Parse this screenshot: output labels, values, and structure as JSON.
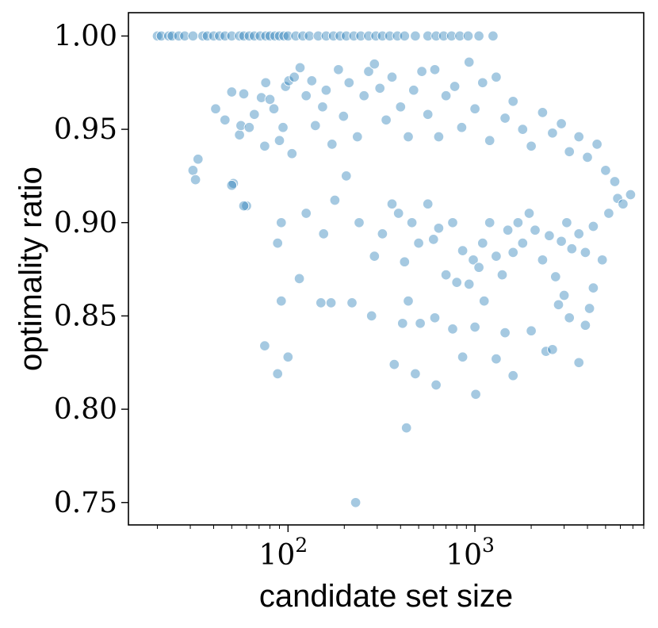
{
  "chart_data": {
    "type": "scatter",
    "xlabel": "candidate set size",
    "ylabel": "optimality ratio",
    "xscale": "log",
    "xlim": [
      14,
      8000
    ],
    "ylim": [
      0.738,
      1.0125
    ],
    "grid": false,
    "legend": "none",
    "color": "#1f77b4",
    "x_ticks": [
      {
        "value": 100,
        "base": "10",
        "exp": "2"
      },
      {
        "value": 1000,
        "base": "10",
        "exp": "3"
      }
    ],
    "y_ticks": [
      {
        "value": 1.0,
        "label": "1.00"
      },
      {
        "value": 0.95,
        "label": "0.95"
      },
      {
        "value": 0.9,
        "label": "0.90"
      },
      {
        "value": 0.85,
        "label": "0.85"
      },
      {
        "value": 0.8,
        "label": "0.80"
      },
      {
        "value": 0.75,
        "label": "0.75"
      }
    ],
    "points": [
      [
        20,
        1.0
      ],
      [
        21,
        1.0
      ],
      [
        23,
        1.0
      ],
      [
        24,
        1.0
      ],
      [
        26,
        1.0
      ],
      [
        28,
        1.0
      ],
      [
        31,
        1.0
      ],
      [
        35,
        1.0
      ],
      [
        37,
        1.0
      ],
      [
        40,
        1.0
      ],
      [
        43,
        1.0
      ],
      [
        46,
        1.0
      ],
      [
        50,
        1.0
      ],
      [
        55,
        1.0
      ],
      [
        58,
        1.0
      ],
      [
        62,
        1.0
      ],
      [
        66,
        1.0
      ],
      [
        71,
        1.0
      ],
      [
        76,
        1.0
      ],
      [
        80,
        1.0
      ],
      [
        85,
        1.0
      ],
      [
        90,
        1.0
      ],
      [
        95,
        1.0
      ],
      [
        100,
        1.0
      ],
      [
        110,
        1.0
      ],
      [
        120,
        1.0
      ],
      [
        130,
        1.0
      ],
      [
        145,
        1.0
      ],
      [
        160,
        1.0
      ],
      [
        175,
        1.0
      ],
      [
        190,
        1.0
      ],
      [
        205,
        1.0
      ],
      [
        225,
        1.0
      ],
      [
        245,
        1.0
      ],
      [
        270,
        1.0
      ],
      [
        295,
        1.0
      ],
      [
        320,
        1.0
      ],
      [
        350,
        1.0
      ],
      [
        385,
        1.0
      ],
      [
        420,
        1.0
      ],
      [
        480,
        1.0
      ],
      [
        560,
        1.0
      ],
      [
        620,
        1.0
      ],
      [
        680,
        1.0
      ],
      [
        750,
        1.0
      ],
      [
        830,
        1.0
      ],
      [
        920,
        1.0
      ],
      [
        1050,
        1.0
      ],
      [
        1250,
        1.0
      ],
      [
        41,
        0.961
      ],
      [
        46,
        0.955
      ],
      [
        50,
        0.97
      ],
      [
        51,
        0.921
      ],
      [
        55,
        0.947
      ],
      [
        56,
        0.952
      ],
      [
        58,
        0.969
      ],
      [
        60,
        0.909
      ],
      [
        62,
        0.951
      ],
      [
        66,
        0.958
      ],
      [
        72,
        0.967
      ],
      [
        75,
        0.941
      ],
      [
        76,
        0.975
      ],
      [
        80,
        0.966
      ],
      [
        84,
        0.961
      ],
      [
        90,
        0.944
      ],
      [
        94,
        0.951
      ],
      [
        97,
        0.973
      ],
      [
        101,
        0.976
      ],
      [
        105,
        0.937
      ],
      [
        108,
        0.978
      ],
      [
        116,
        0.983
      ],
      [
        125,
        0.968
      ],
      [
        134,
        0.976
      ],
      [
        140,
        0.952
      ],
      [
        153,
        0.962
      ],
      [
        160,
        0.971
      ],
      [
        172,
        0.942
      ],
      [
        186,
        0.982
      ],
      [
        198,
        0.957
      ],
      [
        212,
        0.975
      ],
      [
        235,
        0.946
      ],
      [
        255,
        0.968
      ],
      [
        270,
        0.981
      ],
      [
        290,
        0.985
      ],
      [
        310,
        0.972
      ],
      [
        335,
        0.955
      ],
      [
        360,
        0.978
      ],
      [
        400,
        0.962
      ],
      [
        440,
        0.946
      ],
      [
        470,
        0.971
      ],
      [
        520,
        0.981
      ],
      [
        560,
        0.958
      ],
      [
        610,
        0.982
      ],
      [
        640,
        0.946
      ],
      [
        700,
        0.968
      ],
      [
        780,
        0.973
      ],
      [
        850,
        0.951
      ],
      [
        930,
        0.986
      ],
      [
        1000,
        0.961
      ],
      [
        1100,
        0.975
      ],
      [
        1200,
        0.944
      ],
      [
        1300,
        0.978
      ],
      [
        1450,
        0.956
      ],
      [
        1600,
        0.965
      ],
      [
        1800,
        0.95
      ],
      [
        2000,
        0.941
      ],
      [
        2300,
        0.959
      ],
      [
        2600,
        0.948
      ],
      [
        2900,
        0.953
      ],
      [
        3200,
        0.938
      ],
      [
        3600,
        0.946
      ],
      [
        4000,
        0.935
      ],
      [
        4500,
        0.942
      ],
      [
        5000,
        0.928
      ],
      [
        5600,
        0.922
      ],
      [
        31,
        0.928
      ],
      [
        32,
        0.923
      ],
      [
        33,
        0.934
      ],
      [
        50,
        0.92
      ],
      [
        58,
        0.909
      ],
      [
        88,
        0.889
      ],
      [
        92,
        0.9
      ],
      [
        125,
        0.905
      ],
      [
        155,
        0.894
      ],
      [
        178,
        0.912
      ],
      [
        205,
        0.925
      ],
      [
        240,
        0.9
      ],
      [
        290,
        0.882
      ],
      [
        320,
        0.894
      ],
      [
        360,
        0.91
      ],
      [
        390,
        0.905
      ],
      [
        420,
        0.879
      ],
      [
        460,
        0.9
      ],
      [
        500,
        0.889
      ],
      [
        560,
        0.91
      ],
      [
        600,
        0.891
      ],
      [
        640,
        0.897
      ],
      [
        700,
        0.872
      ],
      [
        760,
        0.9
      ],
      [
        800,
        0.868
      ],
      [
        860,
        0.885
      ],
      [
        930,
        0.867
      ],
      [
        980,
        0.88
      ],
      [
        1050,
        0.876
      ],
      [
        1100,
        0.889
      ],
      [
        1200,
        0.9
      ],
      [
        1300,
        0.882
      ],
      [
        1400,
        0.872
      ],
      [
        1500,
        0.896
      ],
      [
        1600,
        0.884
      ],
      [
        1700,
        0.9
      ],
      [
        1800,
        0.889
      ],
      [
        1950,
        0.905
      ],
      [
        2100,
        0.896
      ],
      [
        2300,
        0.88
      ],
      [
        2500,
        0.893
      ],
      [
        2700,
        0.871
      ],
      [
        2900,
        0.89
      ],
      [
        3100,
        0.9
      ],
      [
        3300,
        0.886
      ],
      [
        3600,
        0.894
      ],
      [
        3900,
        0.884
      ],
      [
        4300,
        0.898
      ],
      [
        4800,
        0.88
      ],
      [
        5200,
        0.905
      ],
      [
        5800,
        0.913
      ],
      [
        6200,
        0.91
      ],
      [
        6800,
        0.915
      ],
      [
        92,
        0.858
      ],
      [
        115,
        0.87
      ],
      [
        150,
        0.857
      ],
      [
        170,
        0.857
      ],
      [
        220,
        0.857
      ],
      [
        280,
        0.85
      ],
      [
        410,
        0.846
      ],
      [
        440,
        0.858
      ],
      [
        510,
        0.846
      ],
      [
        610,
        0.849
      ],
      [
        760,
        0.843
      ],
      [
        860,
        0.828
      ],
      [
        1000,
        0.844
      ],
      [
        1120,
        0.858
      ],
      [
        1300,
        0.827
      ],
      [
        1450,
        0.841
      ],
      [
        1600,
        0.818
      ],
      [
        2000,
        0.842
      ],
      [
        2400,
        0.831
      ],
      [
        2600,
        0.832
      ],
      [
        2800,
        0.856
      ],
      [
        3000,
        0.861
      ],
      [
        3200,
        0.849
      ],
      [
        3600,
        0.825
      ],
      [
        3900,
        0.845
      ],
      [
        4100,
        0.854
      ],
      [
        4300,
        0.865
      ],
      [
        75,
        0.834
      ],
      [
        88,
        0.819
      ],
      [
        100,
        0.828
      ],
      [
        370,
        0.824
      ],
      [
        480,
        0.819
      ],
      [
        620,
        0.813
      ],
      [
        1010,
        0.808
      ],
      [
        430,
        0.79
      ],
      [
        230,
        0.75
      ]
    ]
  }
}
